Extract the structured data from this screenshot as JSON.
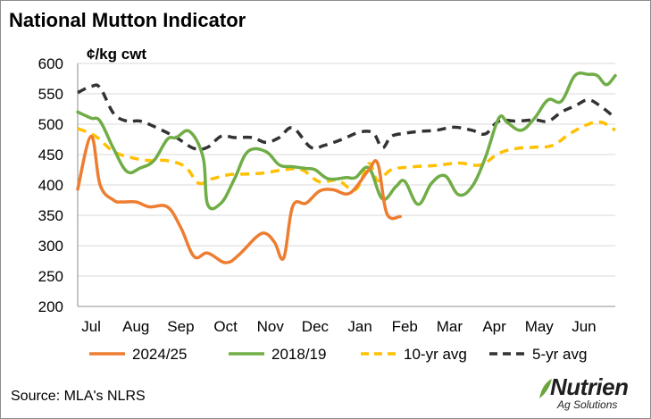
{
  "title": "National Mutton Indicator",
  "source": "Source: MLA's NLRS",
  "logo": {
    "name": "Nutrien",
    "tagline": "Ag Solutions"
  },
  "colors": {
    "2024/25": "#ED7D31",
    "2018/19": "#70AD47",
    "10-yr avg": "#FFC000",
    "5-yr avg": "#333333",
    "grid": "#D9D9D9"
  },
  "chart_data": {
    "type": "line",
    "title": "National Mutton Indicator",
    "ylabel": "¢/kg cwt",
    "xlabel": "",
    "ylim": [
      200,
      600
    ],
    "yticks": [
      200,
      250,
      300,
      350,
      400,
      450,
      500,
      550,
      600
    ],
    "x_ticks": [
      "Jul",
      "Aug",
      "Sep",
      "Oct",
      "Nov",
      "Dec",
      "Jan",
      "Feb",
      "Mar",
      "Apr",
      "May",
      "Jun"
    ],
    "x_range": [
      0,
      12
    ],
    "grid": "horizontal",
    "legend_position": "bottom",
    "series": [
      {
        "name": "2024/25",
        "style": "solid",
        "points": [
          [
            0.0,
            393
          ],
          [
            0.3,
            480
          ],
          [
            0.5,
            400
          ],
          [
            0.8,
            375
          ],
          [
            1.0,
            372
          ],
          [
            1.3,
            372
          ],
          [
            1.6,
            364
          ],
          [
            2.0,
            364
          ],
          [
            2.3,
            330
          ],
          [
            2.6,
            282
          ],
          [
            2.9,
            288
          ],
          [
            3.3,
            272
          ],
          [
            3.6,
            285
          ],
          [
            4.0,
            315
          ],
          [
            4.2,
            320
          ],
          [
            4.4,
            305
          ],
          [
            4.6,
            280
          ],
          [
            4.8,
            365
          ],
          [
            5.1,
            370
          ],
          [
            5.4,
            390
          ],
          [
            5.7,
            392
          ],
          [
            6.0,
            385
          ],
          [
            6.2,
            395
          ],
          [
            6.5,
            425
          ],
          [
            6.7,
            435
          ],
          [
            6.9,
            353
          ],
          [
            7.2,
            348
          ]
        ]
      },
      {
        "name": "2018/19",
        "style": "solid",
        "points": [
          [
            0.0,
            520
          ],
          [
            0.3,
            510
          ],
          [
            0.5,
            505
          ],
          [
            0.8,
            460
          ],
          [
            1.1,
            422
          ],
          [
            1.4,
            428
          ],
          [
            1.7,
            440
          ],
          [
            2.0,
            475
          ],
          [
            2.2,
            478
          ],
          [
            2.5,
            488
          ],
          [
            2.8,
            445
          ],
          [
            2.9,
            368
          ],
          [
            3.2,
            370
          ],
          [
            3.5,
            410
          ],
          [
            3.8,
            455
          ],
          [
            4.2,
            455
          ],
          [
            4.5,
            433
          ],
          [
            4.8,
            430
          ],
          [
            5.1,
            427
          ],
          [
            5.3,
            425
          ],
          [
            5.6,
            410
          ],
          [
            6.0,
            412
          ],
          [
            6.2,
            412
          ],
          [
            6.5,
            428
          ],
          [
            6.8,
            377
          ],
          [
            7.1,
            397
          ],
          [
            7.3,
            406
          ],
          [
            7.6,
            368
          ],
          [
            7.9,
            403
          ],
          [
            8.2,
            415
          ],
          [
            8.5,
            384
          ],
          [
            8.8,
            397
          ],
          [
            9.1,
            445
          ],
          [
            9.4,
            510
          ],
          [
            9.6,
            502
          ],
          [
            9.9,
            490
          ],
          [
            10.2,
            510
          ],
          [
            10.5,
            540
          ],
          [
            10.8,
            538
          ],
          [
            11.1,
            580
          ],
          [
            11.4,
            582
          ],
          [
            11.6,
            580
          ],
          [
            11.8,
            565
          ],
          [
            12.0,
            580
          ]
        ]
      },
      {
        "name": "10-yr avg",
        "style": "dashed",
        "points": [
          [
            0.0,
            493
          ],
          [
            0.4,
            480
          ],
          [
            0.8,
            455
          ],
          [
            1.2,
            445
          ],
          [
            1.6,
            440
          ],
          [
            2.0,
            440
          ],
          [
            2.4,
            430
          ],
          [
            2.7,
            403
          ],
          [
            3.0,
            410
          ],
          [
            3.4,
            417
          ],
          [
            3.8,
            418
          ],
          [
            4.2,
            420
          ],
          [
            4.6,
            425
          ],
          [
            5.0,
            425
          ],
          [
            5.4,
            405
          ],
          [
            5.8,
            408
          ],
          [
            6.2,
            392
          ],
          [
            6.5,
            435
          ],
          [
            6.7,
            407
          ],
          [
            7.0,
            425
          ],
          [
            7.5,
            430
          ],
          [
            8.0,
            432
          ],
          [
            8.5,
            436
          ],
          [
            9.0,
            433
          ],
          [
            9.4,
            452
          ],
          [
            9.8,
            460
          ],
          [
            10.2,
            462
          ],
          [
            10.6,
            465
          ],
          [
            11.0,
            485
          ],
          [
            11.4,
            500
          ],
          [
            11.7,
            503
          ],
          [
            12.0,
            490
          ]
        ]
      },
      {
        "name": "5-yr avg",
        "style": "dashed",
        "points": [
          [
            0.0,
            552
          ],
          [
            0.3,
            562
          ],
          [
            0.5,
            560
          ],
          [
            0.8,
            518
          ],
          [
            1.1,
            505
          ],
          [
            1.4,
            505
          ],
          [
            1.8,
            493
          ],
          [
            2.2,
            478
          ],
          [
            2.6,
            460
          ],
          [
            2.9,
            462
          ],
          [
            3.2,
            480
          ],
          [
            3.5,
            478
          ],
          [
            3.9,
            478
          ],
          [
            4.2,
            470
          ],
          [
            4.5,
            478
          ],
          [
            4.8,
            494
          ],
          [
            5.2,
            462
          ],
          [
            5.5,
            465
          ],
          [
            5.9,
            475
          ],
          [
            6.3,
            487
          ],
          [
            6.6,
            485
          ],
          [
            6.8,
            461
          ],
          [
            7.0,
            480
          ],
          [
            7.3,
            485
          ],
          [
            7.6,
            488
          ],
          [
            8.0,
            490
          ],
          [
            8.4,
            495
          ],
          [
            8.8,
            490
          ],
          [
            9.1,
            484
          ],
          [
            9.4,
            505
          ],
          [
            9.8,
            505
          ],
          [
            10.2,
            507
          ],
          [
            10.5,
            505
          ],
          [
            10.8,
            520
          ],
          [
            11.1,
            530
          ],
          [
            11.4,
            540
          ],
          [
            11.7,
            528
          ],
          [
            12.0,
            510
          ]
        ]
      }
    ]
  }
}
